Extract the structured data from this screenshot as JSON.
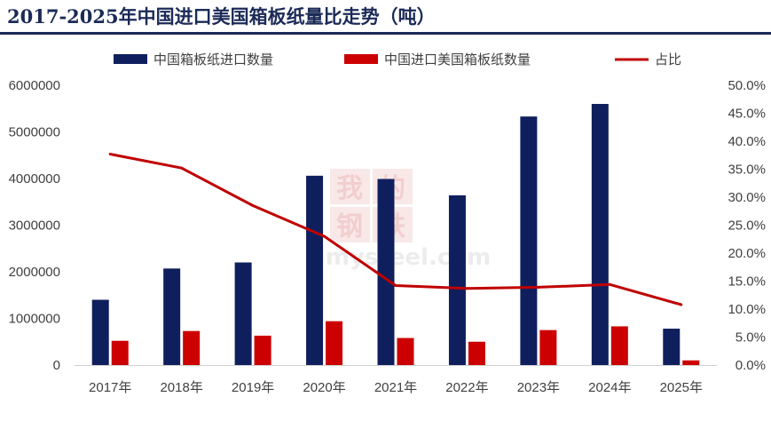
{
  "chart_data": {
    "type": "bar",
    "title": "2017-2025年中国进口美国箱板纸量比走势（吨）",
    "categories": [
      "2017年",
      "2018年",
      "2019年",
      "2020年",
      "2021年",
      "2022年",
      "2023年",
      "2024年",
      "2025年"
    ],
    "series": [
      {
        "name": "中国箱板纸进口数量",
        "type": "bar",
        "axis": "left",
        "color": "#0f1f5e",
        "values": [
          1400000,
          2070000,
          2200000,
          4060000,
          3990000,
          3640000,
          5330000,
          5600000,
          780000
        ]
      },
      {
        "name": "中国进口美国箱板纸数量",
        "type": "bar",
        "axis": "left",
        "color": "#cc0000",
        "values": [
          520000,
          730000,
          630000,
          940000,
          580000,
          500000,
          750000,
          830000,
          100000
        ]
      },
      {
        "name": "占比",
        "type": "line",
        "axis": "right",
        "color": "#c00000",
        "values": [
          0.377,
          0.352,
          0.285,
          0.23,
          0.142,
          0.137,
          0.139,
          0.144,
          0.108
        ]
      }
    ],
    "yleft": {
      "min": 0,
      "max": 6000000,
      "ticks": [
        "0",
        "1000000",
        "2000000",
        "3000000",
        "4000000",
        "5000000",
        "6000000"
      ]
    },
    "yright": {
      "min": 0,
      "max": 0.5,
      "ticks": [
        "0.0%",
        "5.0%",
        "10.0%",
        "15.0%",
        "20.0%",
        "25.0%",
        "30.0%",
        "35.0%",
        "40.0%",
        "45.0%",
        "50.0%"
      ]
    },
    "legend_position": "top",
    "grid": false
  },
  "watermark": {
    "chars": [
      "我",
      "的",
      "钢",
      "铁"
    ],
    "sub": "mysteel.com"
  }
}
